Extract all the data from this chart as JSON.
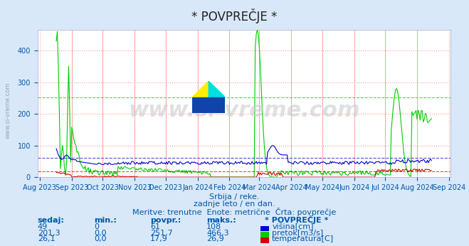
{
  "title": "* POVPREČJE *",
  "subtitle1": "Srbija / reke.",
  "subtitle2": "zadnje leto / en dan.",
  "subtitle3": "Meritve: trenutne  Enote: metrične  Črta: povprečje",
  "xlabel": "",
  "ylabel": "",
  "ylim": [
    0,
    466.3
  ],
  "yticks": [
    0,
    100,
    200,
    300,
    400
  ],
  "bg_color": "#d8e8f8",
  "plot_bg": "#ffffff",
  "grid_color_major": "#ff9999",
  "grid_color_minor": "#ffcccc",
  "vline_color": "#ff4444",
  "watermark": "www.si-vreme.com",
  "watermark_color": "#aaaaaa",
  "avg_blue": 61,
  "avg_green": 251.7,
  "avg_red": 17.9,
  "legend_title": "* POVPREČJE *",
  "legend_color": "#0000aa",
  "table_header": [
    "sedaj:",
    "min.:",
    "povpr.:",
    "maks.:"
  ],
  "table_data": [
    [
      "49",
      "0",
      "61",
      "108"
    ],
    [
      "201,3",
      "0,0",
      "251,7",
      "466,3"
    ],
    [
      "26,1",
      "0,0",
      "17,9",
      "26,9"
    ]
  ],
  "legend_labels": [
    "višina[cm]",
    "pretok[m3/s]",
    "temperatura[C]"
  ],
  "legend_colors": [
    "#0000cc",
    "#00cc00",
    "#cc0000"
  ],
  "text_color": "#0055aa",
  "n_points": 365,
  "blue_max": 108,
  "green_max": 466.3,
  "red_max": 26.9
}
